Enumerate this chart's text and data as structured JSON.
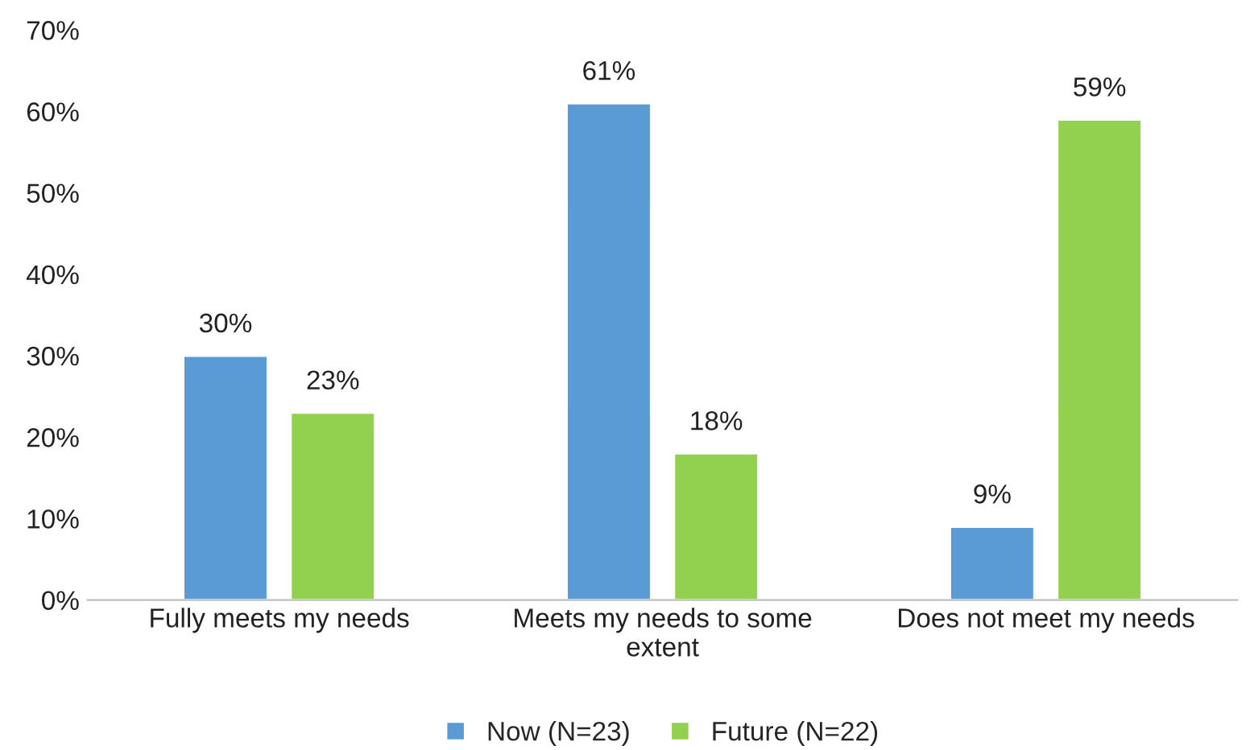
{
  "chart_data": {
    "type": "bar",
    "categories": [
      "Fully meets my needs",
      "Meets my needs to some\nextent",
      "Does not meet my needs"
    ],
    "series": [
      {
        "name": "Now (N=23)",
        "color": "#5b9bd5",
        "values": [
          30,
          61,
          9
        ],
        "value_labels": [
          "30%",
          "61%",
          "9%"
        ]
      },
      {
        "name": "Future (N=22)",
        "color": "#92d050",
        "values": [
          23,
          18,
          59
        ],
        "value_labels": [
          "23%",
          "18%",
          "59%"
        ]
      }
    ],
    "ylim": [
      0,
      70
    ],
    "yticks": [
      {
        "value": 0,
        "label": "0%"
      },
      {
        "value": 10,
        "label": "10%"
      },
      {
        "value": 20,
        "label": "20%"
      },
      {
        "value": 30,
        "label": "30%"
      },
      {
        "value": 40,
        "label": "40%"
      },
      {
        "value": 50,
        "label": "50%"
      },
      {
        "value": 60,
        "label": "60%"
      },
      {
        "value": 70,
        "label": "70%"
      }
    ],
    "grid": false,
    "legend": "bottom"
  }
}
